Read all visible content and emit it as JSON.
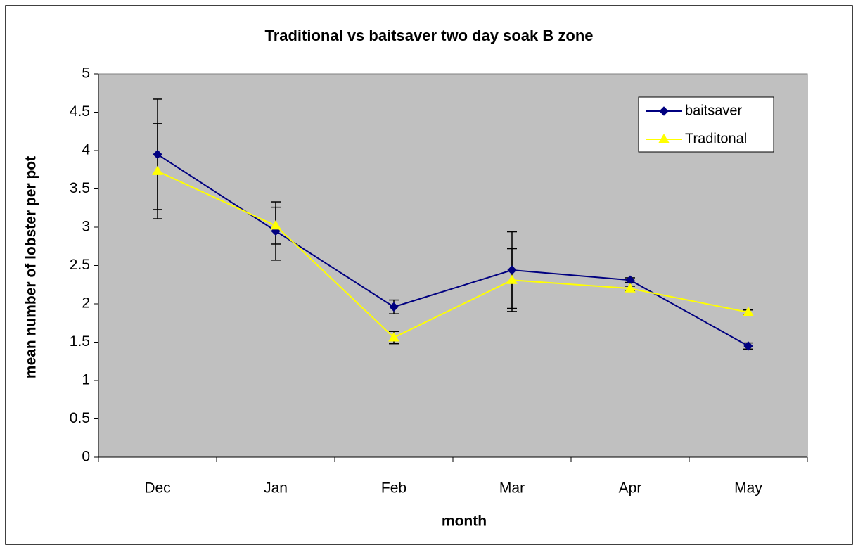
{
  "chart_data": {
    "type": "line",
    "title": "Traditional vs baitsaver two day soak B zone",
    "x_label": "month",
    "y_label": "mean number of lobster per pot",
    "categories": [
      "Dec",
      "Jan",
      "Feb",
      "Mar",
      "Apr",
      "May"
    ],
    "series": [
      {
        "name": "baitsaver",
        "color": "#000080",
        "marker": "diamond",
        "values": [
          3.95,
          2.95,
          1.96,
          2.44,
          2.31,
          1.45
        ],
        "errors": [
          0.72,
          0.38,
          0.09,
          0.5,
          0.03,
          0.04
        ]
      },
      {
        "name": "Traditonal",
        "color": "#ffff00",
        "marker": "triangle",
        "values": [
          3.73,
          3.02,
          1.56,
          2.31,
          2.2,
          1.89
        ],
        "errors": [
          0.62,
          0.24,
          0.08,
          0.41,
          0.03,
          0.03
        ]
      }
    ],
    "ylim": [
      0,
      5
    ],
    "yticks": [
      0,
      0.5,
      1,
      1.5,
      2,
      2.5,
      3,
      3.5,
      4,
      4.5,
      5
    ],
    "grid": false,
    "legend": "top-right",
    "plot_background": "#c0c0c0"
  }
}
